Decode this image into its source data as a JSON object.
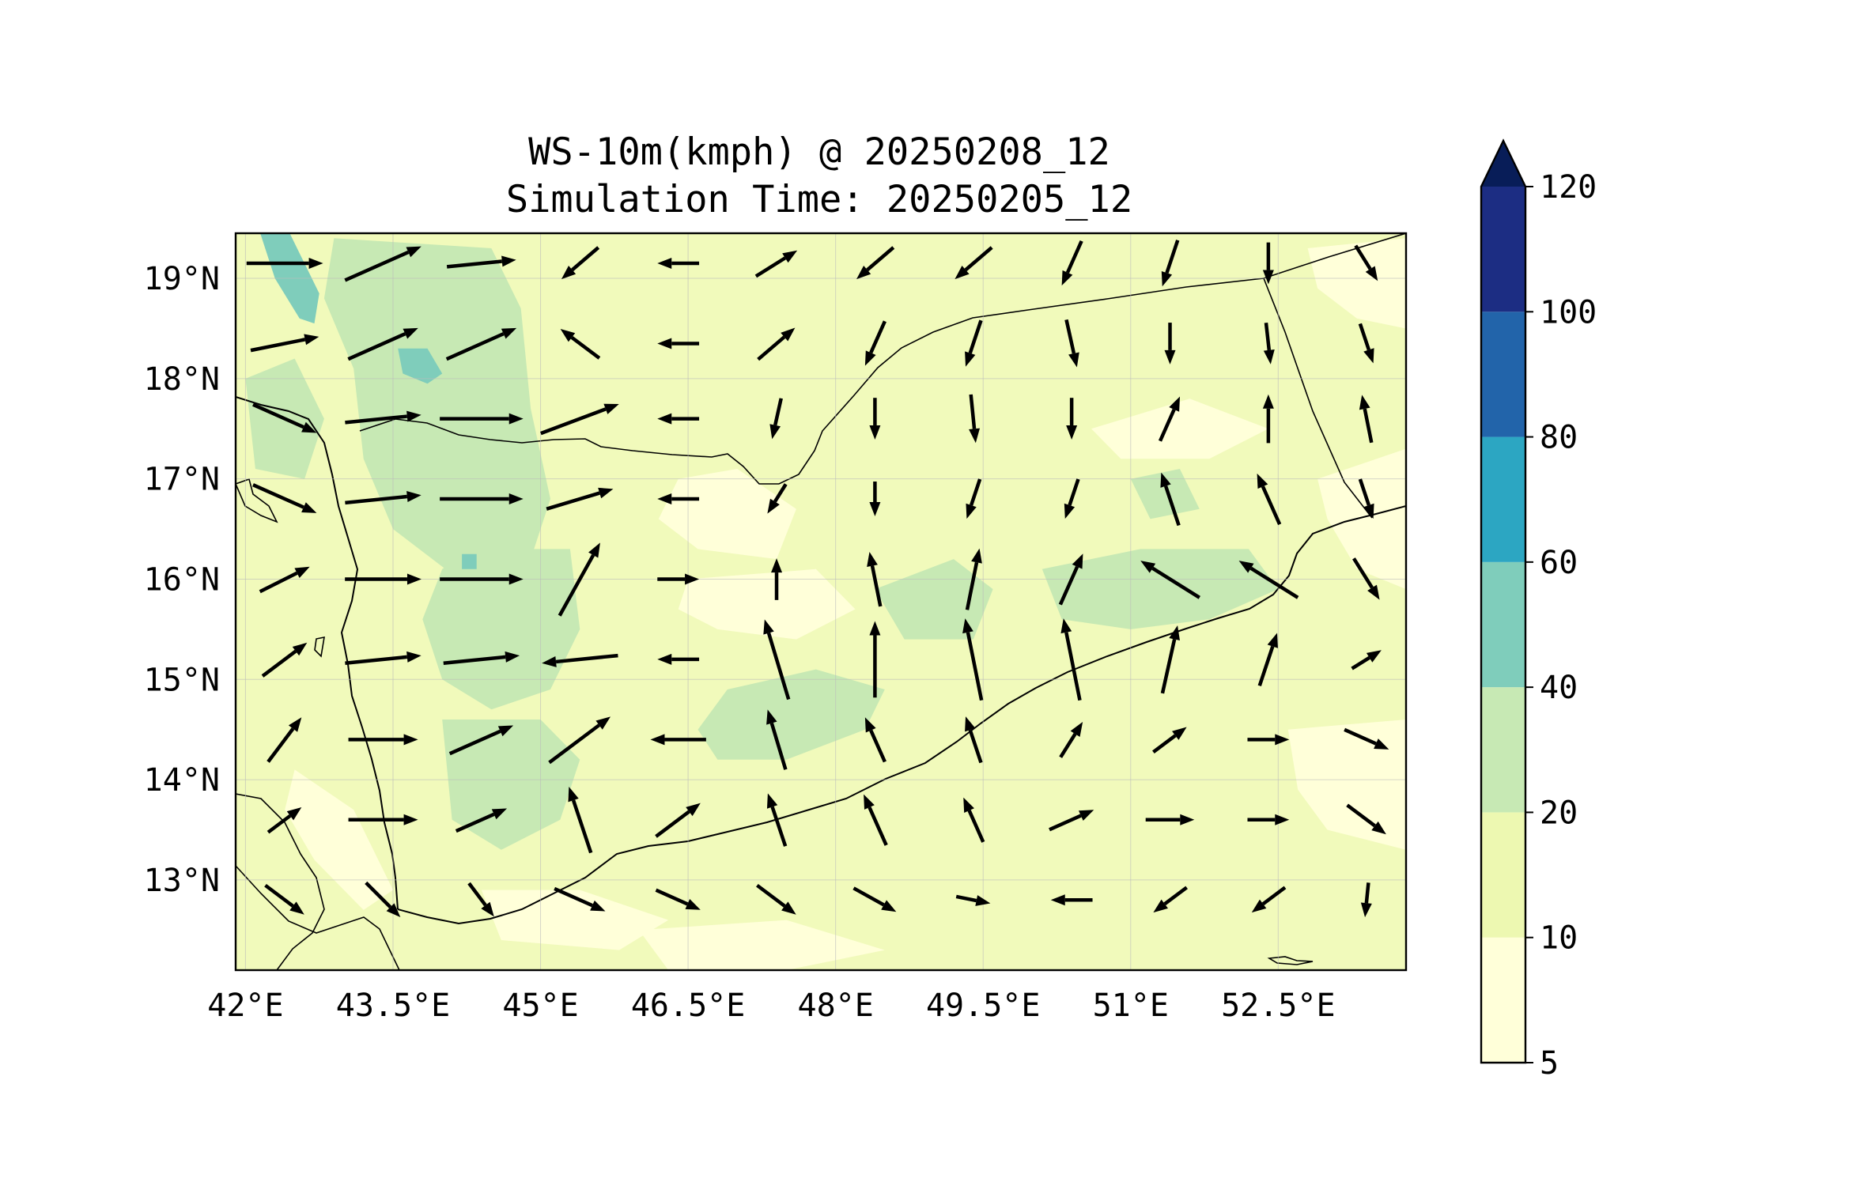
{
  "title": {
    "line1": "WS-10m(kmph) @ 20250208_12",
    "line2": "Simulation Time: 20250205_12"
  },
  "map": {
    "lon_range": [
      41.9,
      53.8
    ],
    "lat_range": [
      12.1,
      19.45
    ],
    "lon_ticks": [
      {
        "value": 42.0,
        "label": "42°E"
      },
      {
        "value": 43.5,
        "label": "43.5°E"
      },
      {
        "value": 45.0,
        "label": "45°E"
      },
      {
        "value": 46.5,
        "label": "46.5°E"
      },
      {
        "value": 48.0,
        "label": "48°E"
      },
      {
        "value": 49.5,
        "label": "49.5°E"
      },
      {
        "value": 51.0,
        "label": "51°E"
      },
      {
        "value": 52.5,
        "label": "52.5°E"
      }
    ],
    "lat_ticks": [
      {
        "value": 19,
        "label": "19°N"
      },
      {
        "value": 18,
        "label": "18°N"
      },
      {
        "value": 17,
        "label": "17°N"
      },
      {
        "value": 16,
        "label": "16°N"
      },
      {
        "value": 15,
        "label": "15°N"
      },
      {
        "value": 14,
        "label": "14°N"
      },
      {
        "value": 13,
        "label": "13°N"
      }
    ],
    "gridlines": true,
    "background_color": "#f1fabb",
    "quiver_color": "#000000"
  },
  "colorbar": {
    "levels": [
      5,
      10,
      20,
      40,
      60,
      80,
      100,
      120
    ],
    "labels": [
      "5",
      "10",
      "20",
      "40",
      "60",
      "80",
      "100",
      "120"
    ],
    "colors": [
      "#ffffd9",
      "#edf8b1",
      "#c7e9b4",
      "#7fcdbb",
      "#2ca6c2",
      "#2264aa",
      "#1c2d83"
    ],
    "extend_color": "#081d58",
    "extend": "max"
  },
  "chart_data": {
    "type": "map-contour-quiver",
    "variable": "WS-10m(kmph)",
    "regions": [
      {
        "level": 5,
        "shape": [
          [
            46.4,
            17.0
          ],
          [
            47.0,
            17.1
          ],
          [
            47.6,
            16.7
          ],
          [
            47.4,
            16.2
          ],
          [
            46.6,
            16.3
          ],
          [
            46.2,
            16.6
          ]
        ]
      },
      {
        "level": 5,
        "shape": [
          [
            46.5,
            16.0
          ],
          [
            47.8,
            16.1
          ],
          [
            48.2,
            15.7
          ],
          [
            47.6,
            15.4
          ],
          [
            46.8,
            15.5
          ],
          [
            46.4,
            15.7
          ]
        ]
      },
      {
        "level": 5,
        "shape": [
          [
            50.6,
            17.5
          ],
          [
            51.6,
            17.8
          ],
          [
            52.4,
            17.5
          ],
          [
            51.8,
            17.2
          ],
          [
            50.9,
            17.2
          ]
        ]
      },
      {
        "level": 5,
        "shape": [
          [
            52.9,
            17.0
          ],
          [
            53.8,
            17.3
          ],
          [
            53.8,
            15.9
          ],
          [
            53.3,
            16.1
          ],
          [
            53.0,
            16.6
          ]
        ]
      },
      {
        "level": 5,
        "shape": [
          [
            52.8,
            19.3
          ],
          [
            53.8,
            19.4
          ],
          [
            53.8,
            18.5
          ],
          [
            53.3,
            18.6
          ],
          [
            52.9,
            18.9
          ]
        ]
      },
      {
        "level": 5,
        "shape": [
          [
            42.5,
            14.1
          ],
          [
            43.1,
            13.7
          ],
          [
            43.5,
            12.9
          ],
          [
            43.2,
            12.7
          ],
          [
            42.7,
            13.2
          ],
          [
            42.4,
            13.7
          ]
        ]
      },
      {
        "level": 5,
        "shape": [
          [
            44.4,
            12.9
          ],
          [
            45.4,
            12.9
          ],
          [
            46.3,
            12.6
          ],
          [
            45.8,
            12.3
          ],
          [
            44.6,
            12.4
          ]
        ]
      },
      {
        "level": 5,
        "shape": [
          [
            52.6,
            14.5
          ],
          [
            53.8,
            14.6
          ],
          [
            53.8,
            13.3
          ],
          [
            53.0,
            13.5
          ],
          [
            52.7,
            13.9
          ]
        ]
      },
      {
        "level": 5,
        "shape": [
          [
            46.0,
            12.5
          ],
          [
            47.5,
            12.6
          ],
          [
            48.5,
            12.3
          ],
          [
            47.5,
            12.1
          ],
          [
            46.3,
            12.1
          ]
        ]
      },
      {
        "level": 20,
        "shape": [
          [
            42.9,
            19.4
          ],
          [
            44.5,
            19.3
          ],
          [
            44.8,
            18.7
          ],
          [
            44.9,
            17.7
          ],
          [
            45.1,
            16.8
          ],
          [
            44.9,
            16.2
          ],
          [
            44.3,
            15.9
          ],
          [
            43.5,
            16.5
          ],
          [
            43.2,
            17.2
          ],
          [
            43.1,
            18.1
          ],
          [
            42.8,
            18.8
          ]
        ]
      },
      {
        "level": 20,
        "shape": [
          [
            44.3,
            16.3
          ],
          [
            45.3,
            16.3
          ],
          [
            45.4,
            15.5
          ],
          [
            45.1,
            14.9
          ],
          [
            44.5,
            14.7
          ],
          [
            44.0,
            15.0
          ],
          [
            43.8,
            15.6
          ],
          [
            44.0,
            16.1
          ]
        ]
      },
      {
        "level": 20,
        "shape": [
          [
            44.0,
            14.6
          ],
          [
            45.0,
            14.6
          ],
          [
            45.4,
            14.2
          ],
          [
            45.2,
            13.6
          ],
          [
            44.6,
            13.3
          ],
          [
            44.1,
            13.6
          ]
        ]
      },
      {
        "level": 20,
        "shape": [
          [
            46.9,
            14.9
          ],
          [
            47.8,
            15.1
          ],
          [
            48.5,
            14.9
          ],
          [
            48.3,
            14.5
          ],
          [
            47.5,
            14.2
          ],
          [
            46.8,
            14.2
          ],
          [
            46.6,
            14.5
          ]
        ]
      },
      {
        "level": 20,
        "shape": [
          [
            50.1,
            16.1
          ],
          [
            51.1,
            16.3
          ],
          [
            52.2,
            16.3
          ],
          [
            52.5,
            15.9
          ],
          [
            51.8,
            15.6
          ],
          [
            51.0,
            15.5
          ],
          [
            50.3,
            15.6
          ]
        ]
      },
      {
        "level": 20,
        "shape": [
          [
            48.4,
            15.9
          ],
          [
            49.2,
            16.2
          ],
          [
            49.6,
            15.9
          ],
          [
            49.4,
            15.4
          ],
          [
            48.7,
            15.4
          ]
        ]
      },
      {
        "level": 20,
        "shape": [
          [
            51.0,
            17.0
          ],
          [
            51.5,
            17.1
          ],
          [
            51.7,
            16.7
          ],
          [
            51.2,
            16.6
          ]
        ]
      },
      {
        "level": 20,
        "shape": [
          [
            42.0,
            18.0
          ],
          [
            42.5,
            18.2
          ],
          [
            42.8,
            17.6
          ],
          [
            42.6,
            17.0
          ],
          [
            42.1,
            17.1
          ]
        ]
      },
      {
        "level": 40,
        "shape": [
          [
            42.15,
            19.45
          ],
          [
            42.45,
            19.45
          ],
          [
            42.75,
            18.85
          ],
          [
            42.7,
            18.55
          ],
          [
            42.55,
            18.6
          ],
          [
            42.3,
            19.0
          ]
        ]
      },
      {
        "level": 40,
        "shape": [
          [
            43.55,
            18.3
          ],
          [
            43.85,
            18.3
          ],
          [
            44.0,
            18.05
          ],
          [
            43.85,
            17.95
          ],
          [
            43.6,
            18.05
          ]
        ]
      },
      {
        "level": 40,
        "shape": [
          [
            44.2,
            16.25
          ],
          [
            44.35,
            16.25
          ],
          [
            44.35,
            16.1
          ],
          [
            44.2,
            16.1
          ]
        ]
      }
    ],
    "vectors_grid": {
      "lons": [
        41.9,
        42.9,
        43.9,
        44.9,
        45.9,
        46.9,
        47.9,
        48.9,
        49.9,
        50.9,
        51.9,
        52.9
      ],
      "lats": [
        19.15,
        18.35,
        17.6,
        16.8,
        16.0,
        15.2,
        14.4,
        13.6,
        12.8
      ],
      "u_dir": [
        [
          1.0,
          0.9,
          1.0,
          -0.7,
          -1.0,
          0.8,
          -0.7,
          -0.7,
          -0.4,
          -0.3,
          0.0,
          0.5
        ],
        [
          1.0,
          0.9,
          0.9,
          -0.8,
          -1.0,
          0.7,
          -0.4,
          -0.3,
          0.2,
          0.0,
          0.1,
          0.3
        ],
        [
          0.9,
          1.0,
          1.0,
          0.8,
          -1.0,
          -0.2,
          0.0,
          0.1,
          0.0,
          0.4,
          0.0,
          -0.2
        ],
        [
          0.9,
          1.0,
          1.0,
          1.0,
          -1.0,
          -0.5,
          0.0,
          -0.3,
          -0.3,
          -0.3,
          -0.4,
          0.3
        ],
        [
          0.8,
          1.0,
          1.0,
          0.5,
          1.0,
          0.0,
          -0.2,
          0.2,
          0.4,
          -0.8,
          -0.8,
          0.5
        ],
        [
          0.8,
          1.0,
          1.0,
          -1.0,
          -1.0,
          -0.3,
          0.0,
          -0.2,
          -0.2,
          0.2,
          0.3,
          0.8
        ],
        [
          0.6,
          1.0,
          0.9,
          0.8,
          -1.0,
          -0.3,
          -0.4,
          -0.3,
          0.5,
          0.8,
          1.0,
          0.9
        ],
        [
          0.8,
          1.0,
          0.9,
          -0.3,
          0.8,
          -0.3,
          -0.4,
          -0.4,
          0.9,
          1.0,
          1.0,
          0.8
        ],
        [
          0.8,
          0.7,
          0.6,
          0.9,
          0.9,
          0.8,
          0.9,
          1.0,
          -1.0,
          -0.8,
          -0.8,
          -0.1
        ]
      ],
      "v_dir": [
        [
          0.0,
          0.4,
          0.1,
          -0.6,
          0.0,
          0.5,
          -0.6,
          -0.6,
          -0.9,
          -0.9,
          -1.0,
          -0.8
        ],
        [
          0.2,
          0.4,
          0.4,
          0.6,
          0.0,
          0.6,
          -0.9,
          -0.9,
          -0.9,
          -1.0,
          -0.9,
          -0.9
        ],
        [
          -0.4,
          0.1,
          0.0,
          0.3,
          0.0,
          -0.9,
          -1.0,
          -1.0,
          -1.0,
          0.9,
          1.0,
          1.0
        ],
        [
          -0.4,
          0.1,
          0.0,
          0.3,
          0.0,
          -0.8,
          -1.0,
          -0.9,
          -0.9,
          0.9,
          0.9,
          -0.9
        ],
        [
          0.4,
          0.0,
          0.0,
          0.9,
          0.0,
          1.0,
          1.0,
          1.0,
          0.9,
          0.5,
          0.5,
          -0.8
        ],
        [
          0.6,
          0.1,
          0.1,
          -0.1,
          0.0,
          1.0,
          1.0,
          1.0,
          1.0,
          0.9,
          0.9,
          0.5
        ],
        [
          0.8,
          0.0,
          0.4,
          0.6,
          0.0,
          1.0,
          0.9,
          0.9,
          0.8,
          0.6,
          0.0,
          -0.4
        ],
        [
          0.6,
          0.0,
          0.4,
          0.9,
          0.6,
          0.9,
          0.9,
          0.9,
          0.4,
          0.0,
          0.0,
          -0.6
        ],
        [
          -0.6,
          -0.7,
          -0.8,
          -0.4,
          -0.4,
          -0.6,
          -0.5,
          -0.2,
          0.0,
          -0.6,
          -0.6,
          -1.0
        ]
      ],
      "speed": [
        [
          22,
          24,
          20,
          14,
          12,
          14,
          14,
          14,
          14,
          14,
          12,
          12
        ],
        [
          20,
          22,
          22,
          14,
          12,
          14,
          14,
          14,
          14,
          12,
          12,
          12
        ],
        [
          20,
          22,
          24,
          24,
          12,
          12,
          12,
          14,
          12,
          14,
          14,
          14
        ],
        [
          20,
          22,
          24,
          20,
          12,
          10,
          10,
          12,
          12,
          16,
          16,
          12
        ],
        [
          16,
          22,
          24,
          24,
          12,
          12,
          16,
          18,
          16,
          20,
          20,
          14
        ],
        [
          16,
          22,
          22,
          22,
          12,
          24,
          22,
          24,
          24,
          20,
          16,
          10
        ],
        [
          16,
          20,
          20,
          22,
          16,
          18,
          14,
          14,
          12,
          12,
          12,
          14
        ],
        [
          12,
          20,
          16,
          20,
          16,
          16,
          16,
          14,
          14,
          14,
          12,
          14
        ],
        [
          14,
          14,
          12,
          16,
          14,
          14,
          14,
          10,
          12,
          12,
          12,
          10
        ]
      ]
    }
  }
}
